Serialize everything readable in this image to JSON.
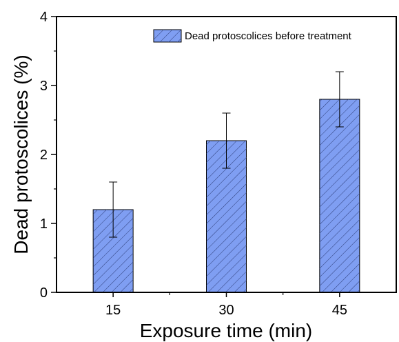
{
  "chart_data": {
    "type": "bar",
    "categories": [
      "15",
      "30",
      "45"
    ],
    "series": [
      {
        "name": "Dead protoscolices before treatment",
        "values": [
          1.2,
          2.2,
          2.8
        ],
        "errors": [
          0.4,
          0.4,
          0.4
        ]
      }
    ],
    "xlabel": "Exposure time (min)",
    "ylabel": "Dead protoscolices (%)",
    "ylim": [
      0,
      4
    ],
    "yticks": [
      "0",
      "1",
      "2",
      "3",
      "4"
    ],
    "grid": false,
    "legend_position": "top-right",
    "bar_color": "#7f9ef2",
    "hatch_color": "#2f3f7a"
  }
}
